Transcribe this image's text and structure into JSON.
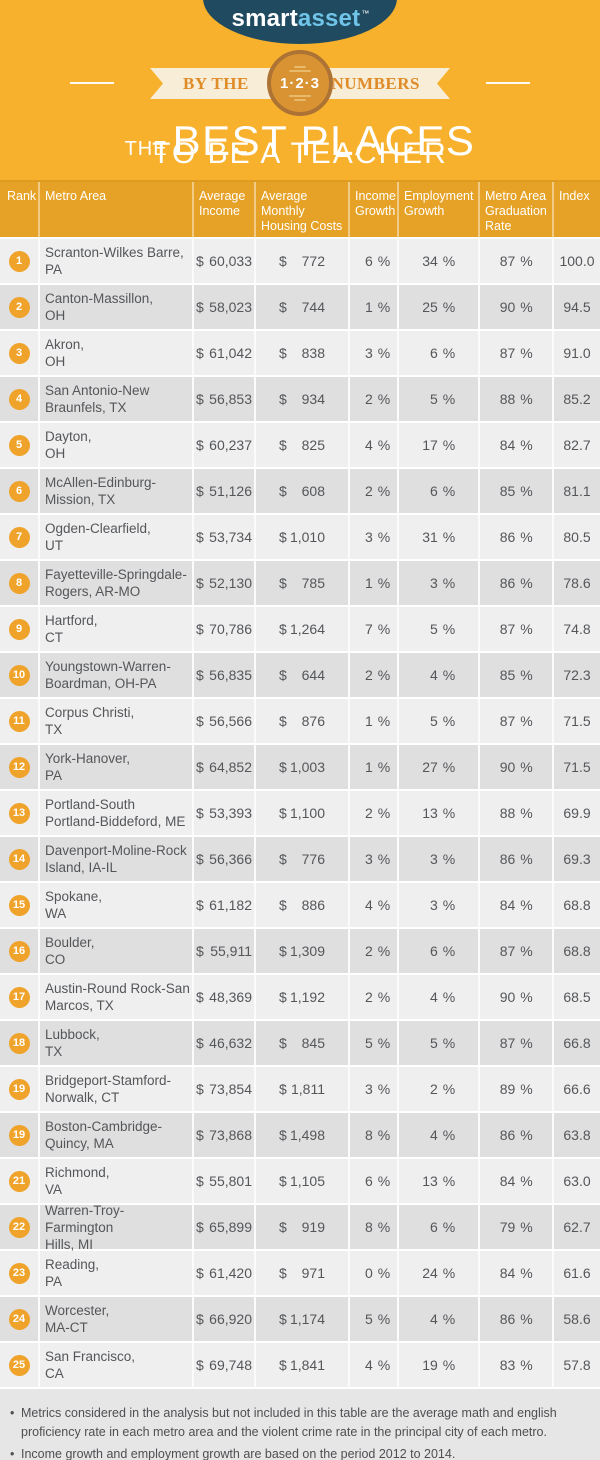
{
  "brand": {
    "logo_text_primary": "smart",
    "logo_text_secondary": "asset",
    "trademark": "™"
  },
  "banner": {
    "ribbon_left": "BY THE",
    "ribbon_right": "NUMBERS",
    "badge_text": "1·2·3",
    "title_prefix": "THE",
    "title_main": "BEST PLACES",
    "title_line2": "TO BE A TEACHER"
  },
  "colors": {
    "background_yellow": "#F7B12C",
    "table_header_orange": "#E6A226",
    "rank_badge_orange": "#EFA32B",
    "logo_navy": "#204A60",
    "logo_accent_blue": "#6FC4E8",
    "ribbon_cream": "#F8EDD6",
    "ribbon_text_orange": "#DF8B28",
    "badge_fill": "#D99333",
    "badge_ring": "#AD7334",
    "row_light": "#EFEFEF",
    "row_dark": "#DFDFDF",
    "body_text": "#54565A",
    "footer_bg": "#E6E6E6"
  },
  "chart_data": {
    "type": "table",
    "title": "The Best Places to Be a Teacher",
    "columns": [
      "Rank",
      "Metro Area",
      "Average Income",
      "Average Monthly Housing Costs",
      "Income Growth",
      "Employment Growth",
      "Metro Area Graduation Rate",
      "Index"
    ],
    "rows": [
      [
        "1",
        "Scranton-Wilkes Barre,\nPA",
        "$ 60,033",
        "$ 772",
        "6 %",
        "34 %",
        "87 %",
        "100.0"
      ],
      [
        "2",
        "Canton-Massillon,\nOH",
        "$ 58,023",
        "$ 744",
        "1 %",
        "25 %",
        "90 %",
        "94.5"
      ],
      [
        "3",
        "Akron,\nOH",
        "$ 61,042",
        "$ 838",
        "3 %",
        "6 %",
        "87 %",
        "91.0"
      ],
      [
        "4",
        "San Antonio-New\nBraunfels, TX",
        "$ 56,853",
        "$ 934",
        "2 %",
        "5 %",
        "88 %",
        "85.2"
      ],
      [
        "5",
        "Dayton,\nOH",
        "$ 60,237",
        "$ 825",
        "4 %",
        "17 %",
        "84 %",
        "82.7"
      ],
      [
        "6",
        "McAllen-Edinburg-\nMission, TX",
        "$ 51,126",
        "$ 608",
        "2 %",
        "6 %",
        "85 %",
        "81.1"
      ],
      [
        "7",
        "Ogden-Clearfield,\nUT",
        "$ 53,734",
        "$ 1,010",
        "3 %",
        "31 %",
        "86 %",
        "80.5"
      ],
      [
        "8",
        "Fayetteville-Springdale-\nRogers, AR-MO",
        "$ 52,130",
        "$ 785",
        "1 %",
        "3 %",
        "86 %",
        "78.6"
      ],
      [
        "9",
        "Hartford,\nCT",
        "$ 70,786",
        "$ 1,264",
        "7 %",
        "5 %",
        "87 %",
        "74.8"
      ],
      [
        "10",
        "Youngstown-Warren-\nBoardman, OH-PA",
        "$ 56,835",
        "$ 644",
        "2 %",
        "4 %",
        "85 %",
        "72.3"
      ],
      [
        "11",
        "Corpus Christi,\nTX",
        "$ 56,566",
        "$ 876",
        "1 %",
        "5 %",
        "87 %",
        "71.5"
      ],
      [
        "12",
        "York-Hanover,\nPA",
        "$ 64,852",
        "$ 1,003",
        "1 %",
        "27 %",
        "90 %",
        "71.5"
      ],
      [
        "13",
        "Portland-South\nPortland-Biddeford, ME",
        "$ 53,393",
        "$ 1,100",
        "2 %",
        "13 %",
        "88 %",
        "69.9"
      ],
      [
        "14",
        "Davenport-Moline-Rock\nIsland, IA-IL",
        "$ 56,366",
        "$ 776",
        "3 %",
        "3 %",
        "86 %",
        "69.3"
      ],
      [
        "15",
        "Spokane,\nWA",
        "$ 61,182",
        "$ 886",
        "4 %",
        "3 %",
        "84 %",
        "68.8"
      ],
      [
        "16",
        "Boulder,\nCO",
        "$ 55,911",
        "$ 1,309",
        "2 %",
        "6 %",
        "87 %",
        "68.8"
      ],
      [
        "17",
        "Austin-Round Rock-San\nMarcos, TX",
        "$ 48,369",
        "$ 1,192",
        "2 %",
        "4 %",
        "90 %",
        "68.5"
      ],
      [
        "18",
        "Lubbock,\nTX",
        "$ 46,632",
        "$ 845",
        "5 %",
        "5 %",
        "87 %",
        "66.8"
      ],
      [
        "19",
        "Bridgeport-Stamford-\nNorwalk, CT",
        "$ 73,854",
        "$ 1,811",
        "3 %",
        "2 %",
        "89 %",
        "66.6"
      ],
      [
        "19",
        "Boston-Cambridge-\nQuincy, MA",
        "$ 73,868",
        "$ 1,498",
        "8 %",
        "4 %",
        "86 %",
        "63.8"
      ],
      [
        "21",
        "Richmond,\nVA",
        "$ 55,801",
        "$ 1,105",
        "6 %",
        "13 %",
        "84 %",
        "63.0"
      ],
      [
        "22",
        "Warren-Troy-Farmington\nHills, MI",
        "$ 65,899",
        "$ 919",
        "8 %",
        "6 %",
        "79 %",
        "62.7"
      ],
      [
        "23",
        "Reading,\nPA",
        "$ 61,420",
        "$ 971",
        "0 %",
        "24 %",
        "84 %",
        "61.6"
      ],
      [
        "24",
        "Worcester,\nMA-CT",
        "$ 66,920",
        "$ 1,174",
        "5 %",
        "4 %",
        "86 %",
        "58.6"
      ],
      [
        "25",
        "San Francisco,\nCA",
        "$ 69,748",
        "$ 1,841",
        "4 %",
        "19 %",
        "83 %",
        "57.8"
      ]
    ]
  },
  "footnotes": {
    "bullet": "•",
    "items": [
      "Metrics considered in the analysis but not included in this table are the average math and english proficiency rate in each metro area and the violent crime rate in the principal city of each metro.",
      "Income growth and employment growth are based on the period 2012 to 2014."
    ]
  }
}
